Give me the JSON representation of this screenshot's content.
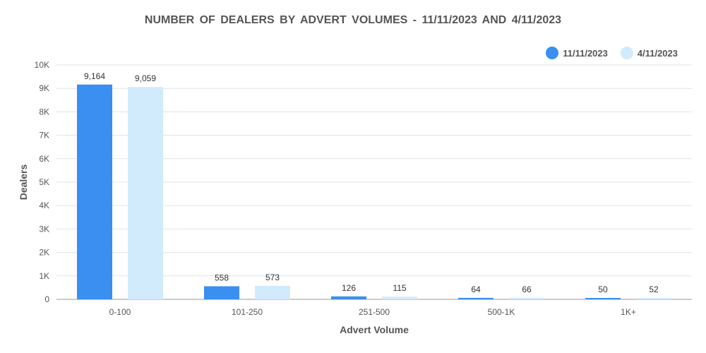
{
  "chart_data": {
    "type": "bar",
    "title": "NUMBER OF DEALERS BY ADVERT VOLUMES - 11/11/2023 AND 4/11/2023",
    "xlabel": "Advert Volume",
    "ylabel": "Dealers",
    "categories": [
      "0-100",
      "101-250",
      "251-500",
      "500-1K",
      "1K+"
    ],
    "series": [
      {
        "name": "11/11/2023",
        "color": "#3a8ff0",
        "values": [
          9164,
          558,
          126,
          64,
          50
        ],
        "labels": [
          "9,164",
          "558",
          "126",
          "64",
          "50"
        ]
      },
      {
        "name": "4/11/2023",
        "color": "#d2ebfc",
        "values": [
          9059,
          573,
          115,
          66,
          52
        ],
        "labels": [
          "9,059",
          "573",
          "115",
          "66",
          "52"
        ]
      }
    ],
    "ylim": [
      0,
      10000
    ],
    "yticks": [
      0,
      1000,
      2000,
      3000,
      4000,
      5000,
      6000,
      7000,
      8000,
      9000,
      10000
    ],
    "ytick_labels": [
      "0",
      "1K",
      "2K",
      "3K",
      "4K",
      "5K",
      "6K",
      "7K",
      "8K",
      "9K",
      "10K"
    ],
    "grid": true,
    "legend_position": "top-right"
  }
}
